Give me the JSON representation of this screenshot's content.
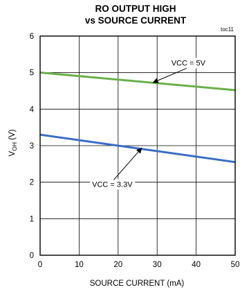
{
  "chart_data": {
    "type": "line",
    "title_lines": [
      "RO OUTPUT HIGH",
      "vs SOURCE CURRENT"
    ],
    "figure_id": "toc11",
    "xlabel": "SOURCE CURRENT (mA)",
    "ylabel_main": "V",
    "ylabel_sub": "OH",
    "ylabel_unit": " (V)",
    "xlim": [
      0,
      50
    ],
    "ylim": [
      0,
      6
    ],
    "xticks": [
      0,
      10,
      20,
      30,
      40,
      50
    ],
    "yticks": [
      0,
      1,
      2,
      3,
      4,
      5,
      6
    ],
    "grid": true,
    "series": [
      {
        "name": "VCC = 5V",
        "color": "#6ab04c",
        "x": [
          0,
          50
        ],
        "y": [
          5.0,
          4.52
        ]
      },
      {
        "name": "VCC = 3.3V",
        "color": "#3a6cc4",
        "x": [
          0,
          50
        ],
        "y": [
          3.3,
          2.55
        ]
      }
    ],
    "annotations": [
      {
        "text": "VCC = 5V",
        "series": 0,
        "label_x": 38,
        "label_y": 5.27,
        "arrow_to_x": 29,
        "arrow_to_y": 4.73
      },
      {
        "text": "VCC = 3.3V",
        "series": 1,
        "label_x": 18.5,
        "label_y": 1.95,
        "arrow_to_x": 26,
        "arrow_to_y": 2.93
      }
    ]
  }
}
